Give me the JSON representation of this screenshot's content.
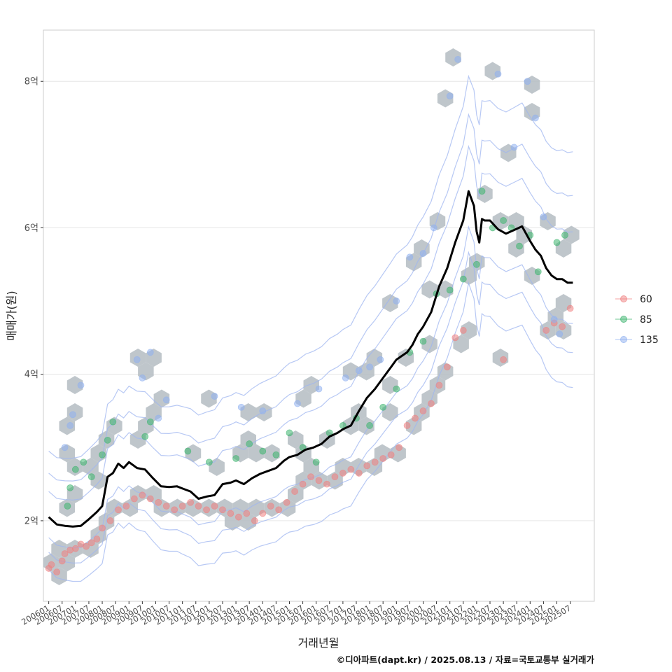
{
  "chart_data": {
    "type": "scatter",
    "title": "",
    "xlabel": "거래년월",
    "ylabel": "매매가(원)",
    "caption": "©디아파트(dapt.kr) / 2025.08.13 / 자료=국토교통부 실거래가",
    "ylim": [
      0.9,
      8.7
    ],
    "x_domain": [
      2005.8,
      2026.4
    ],
    "y_ticks": [
      {
        "value": 2,
        "label": "2억"
      },
      {
        "value": 4,
        "label": "4억"
      },
      {
        "value": 6,
        "label": "6억"
      },
      {
        "value": 8,
        "label": "8억"
      }
    ],
    "x_ticks": [
      "200601",
      "200607",
      "200701",
      "200707",
      "200801",
      "200807",
      "200901",
      "200907",
      "201001",
      "201007",
      "201101",
      "201107",
      "201201",
      "201207",
      "201301",
      "201307",
      "201401",
      "201407",
      "201501",
      "201507",
      "201601",
      "201607",
      "201701",
      "201707",
      "201801",
      "201807",
      "201901",
      "201907",
      "202001",
      "202007",
      "202101",
      "202107",
      "202201",
      "202207",
      "202301",
      "202307",
      "202401",
      "202407",
      "202501",
      "202507"
    ],
    "legend": {
      "position": "right",
      "entries": [
        {
          "label": "60",
          "color": "#f08080"
        },
        {
          "label": "85",
          "color": "#3cb46e"
        },
        {
          "label": "135",
          "color": "#8fb0f0"
        }
      ]
    },
    "colors": {
      "hex": "#b4bcc2",
      "trend": "#000000",
      "contour": "#9fb6f0"
    },
    "trend_line": {
      "x": [
        2006.0,
        2006.3,
        2006.6,
        2006.9,
        2007.2,
        2007.5,
        2007.8,
        2008.0,
        2008.2,
        2008.4,
        2008.6,
        2008.8,
        2009.0,
        2009.3,
        2009.6,
        2009.9,
        2010.2,
        2010.5,
        2010.8,
        2011.0,
        2011.3,
        2011.6,
        2011.9,
        2012.2,
        2012.5,
        2012.8,
        2013.0,
        2013.3,
        2013.6,
        2013.9,
        2014.2,
        2014.5,
        2014.8,
        2015.0,
        2015.3,
        2015.6,
        2015.9,
        2016.2,
        2016.5,
        2016.8,
        2017.0,
        2017.3,
        2017.6,
        2017.9,
        2018.2,
        2018.5,
        2018.8,
        2019.0,
        2019.2,
        2019.4,
        2019.6,
        2019.8,
        2020.0,
        2020.3,
        2020.6,
        2020.9,
        2021.2,
        2021.5,
        2021.7,
        2021.9,
        2022.0,
        2022.1,
        2022.2,
        2022.3,
        2022.5,
        2022.8,
        2023.1,
        2023.4,
        2023.7,
        2024.0,
        2024.2,
        2024.4,
        2024.6,
        2024.8,
        2025.0,
        2025.2,
        2025.4,
        2025.6
      ],
      "y": [
        2.05,
        1.95,
        1.93,
        1.92,
        1.93,
        2.02,
        2.12,
        2.2,
        2.6,
        2.65,
        2.78,
        2.72,
        2.8,
        2.72,
        2.7,
        2.58,
        2.47,
        2.46,
        2.47,
        2.44,
        2.4,
        2.3,
        2.33,
        2.35,
        2.5,
        2.52,
        2.55,
        2.5,
        2.58,
        2.64,
        2.68,
        2.72,
        2.82,
        2.87,
        2.9,
        2.97,
        3.0,
        3.05,
        3.15,
        3.2,
        3.25,
        3.3,
        3.5,
        3.68,
        3.8,
        3.95,
        4.1,
        4.2,
        4.25,
        4.3,
        4.4,
        4.55,
        4.65,
        4.85,
        5.2,
        5.45,
        5.8,
        6.1,
        6.5,
        6.3,
        5.95,
        5.8,
        6.12,
        6.1,
        6.1,
        5.98,
        5.92,
        5.97,
        6.02,
        5.82,
        5.7,
        5.62,
        5.45,
        5.35,
        5.3,
        5.3,
        5.25,
        5.25
      ]
    },
    "series": [
      {
        "name": "60",
        "x": [
          2006.0,
          2006.1,
          2006.3,
          2006.5,
          2006.6,
          2006.8,
          2007.0,
          2007.2,
          2007.4,
          2007.6,
          2007.8,
          2008.0,
          2008.3,
          2008.6,
          2008.9,
          2009.2,
          2009.5,
          2009.8,
          2010.1,
          2010.4,
          2010.7,
          2011.0,
          2011.3,
          2011.6,
          2011.9,
          2012.2,
          2012.5,
          2012.8,
          2013.1,
          2013.4,
          2013.7,
          2014.0,
          2014.3,
          2014.6,
          2014.9,
          2015.2,
          2015.5,
          2015.8,
          2016.1,
          2016.4,
          2016.7,
          2017.0,
          2017.3,
          2017.6,
          2017.9,
          2018.2,
          2018.5,
          2018.8,
          2019.1,
          2019.4,
          2019.7,
          2020.0,
          2020.3,
          2020.6,
          2020.9,
          2021.2,
          2021.5,
          2023.0,
          2024.6,
          2024.9,
          2025.2,
          2025.5
        ],
        "y": [
          1.35,
          1.4,
          1.3,
          1.45,
          1.55,
          1.6,
          1.62,
          1.68,
          1.65,
          1.7,
          1.75,
          1.9,
          2.0,
          2.15,
          2.2,
          2.3,
          2.35,
          2.3,
          2.25,
          2.2,
          2.15,
          2.2,
          2.25,
          2.2,
          2.15,
          2.2,
          2.15,
          2.1,
          2.05,
          2.1,
          2.0,
          2.1,
          2.2,
          2.15,
          2.25,
          2.4,
          2.5,
          2.6,
          2.55,
          2.5,
          2.6,
          2.65,
          2.7,
          2.65,
          2.75,
          2.8,
          2.85,
          2.9,
          3.0,
          3.3,
          3.4,
          3.5,
          3.6,
          3.85,
          4.1,
          4.5,
          4.6,
          4.2,
          4.6,
          4.7,
          4.65,
          4.9
        ]
      },
      {
        "name": "85",
        "x": [
          2006.7,
          2006.8,
          2007.0,
          2007.3,
          2007.6,
          2008.0,
          2008.2,
          2008.4,
          2009.6,
          2009.8,
          2011.2,
          2012.0,
          2013.0,
          2013.5,
          2014.0,
          2014.5,
          2015.0,
          2015.5,
          2016.0,
          2016.5,
          2017.0,
          2017.5,
          2018.0,
          2018.5,
          2019.0,
          2019.5,
          2020.0,
          2020.5,
          2021.0,
          2021.5,
          2022.0,
          2022.2,
          2022.6,
          2023.0,
          2023.3,
          2023.6,
          2024.0,
          2024.3,
          2025.0,
          2025.3
        ],
        "y": [
          2.2,
          2.45,
          2.7,
          2.8,
          2.6,
          2.9,
          3.1,
          3.35,
          3.15,
          3.35,
          2.95,
          2.8,
          2.85,
          3.05,
          2.95,
          2.9,
          3.2,
          3.0,
          2.8,
          3.2,
          3.3,
          3.4,
          3.3,
          3.55,
          3.8,
          4.3,
          4.45,
          5.1,
          5.15,
          5.3,
          5.5,
          6.5,
          6.0,
          6.1,
          6.0,
          5.75,
          5.9,
          5.4,
          5.8,
          5.9
        ]
      },
      {
        "name": "135",
        "x": [
          2006.6,
          2006.8,
          2006.9,
          2007.2,
          2009.3,
          2009.5,
          2009.8,
          2010.1,
          2010.4,
          2012.2,
          2013.2,
          2014.0,
          2015.3,
          2016.1,
          2017.1,
          2017.6,
          2018.0,
          2018.4,
          2019.0,
          2019.5,
          2020.0,
          2020.4,
          2021.0,
          2021.3,
          2022.8,
          2023.4,
          2023.9,
          2024.2,
          2024.5,
          2024.9,
          2025.1
        ],
        "y": [
          3.0,
          3.3,
          3.45,
          3.85,
          4.2,
          3.95,
          4.3,
          3.4,
          3.65,
          3.7,
          3.55,
          3.5,
          3.6,
          3.8,
          3.95,
          4.05,
          4.1,
          4.2,
          5.0,
          5.6,
          5.65,
          6.0,
          7.8,
          8.3,
          8.1,
          7.1,
          8.0,
          7.5,
          6.15,
          4.75,
          4.55
        ]
      }
    ]
  }
}
